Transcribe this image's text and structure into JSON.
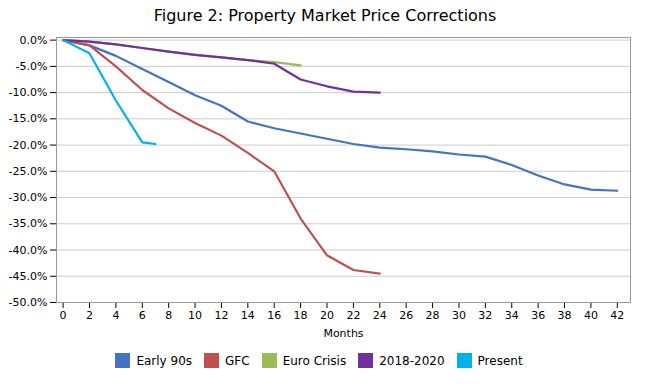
{
  "chart_data": {
    "type": "line",
    "title": "Figure 2: Property Market Price Corrections",
    "xlabel": "Months",
    "series": [
      {
        "name": "Early 90s",
        "color": "#4472C4",
        "x": [
          0,
          2,
          4,
          6,
          8,
          10,
          12,
          14,
          16,
          18,
          20,
          22,
          24,
          26,
          28,
          30,
          32,
          34,
          36,
          38,
          40,
          42
        ],
        "values": [
          0.0,
          -0.01,
          -0.03,
          -0.055,
          -0.08,
          -0.105,
          -0.125,
          -0.155,
          -0.168,
          -0.178,
          -0.188,
          -0.198,
          -0.205,
          -0.208,
          -0.212,
          -0.218,
          -0.222,
          -0.238,
          -0.258,
          -0.275,
          -0.285,
          -0.287
        ]
      },
      {
        "name": "GFC",
        "color": "#C0504D",
        "x": [
          0,
          2,
          4,
          6,
          8,
          10,
          12,
          14,
          16,
          18,
          20,
          22,
          24
        ],
        "values": [
          0.0,
          -0.01,
          -0.05,
          -0.095,
          -0.13,
          -0.158,
          -0.182,
          -0.215,
          -0.25,
          -0.34,
          -0.41,
          -0.438,
          -0.445
        ]
      },
      {
        "name": "Euro Crisis",
        "color": "#9BBB59",
        "x": [
          0,
          2,
          4,
          6,
          8,
          10,
          12,
          14,
          16,
          18
        ],
        "values": [
          0.0,
          -0.003,
          -0.008,
          -0.015,
          -0.022,
          -0.028,
          -0.033,
          -0.038,
          -0.042,
          -0.048
        ]
      },
      {
        "name": "2018-2020",
        "color": "#7030A0",
        "x": [
          0,
          2,
          4,
          6,
          8,
          10,
          12,
          14,
          16,
          18,
          20,
          22,
          24
        ],
        "values": [
          0.0,
          -0.003,
          -0.008,
          -0.015,
          -0.022,
          -0.028,
          -0.033,
          -0.038,
          -0.045,
          -0.075,
          -0.088,
          -0.098,
          -0.1
        ]
      },
      {
        "name": "Present",
        "color": "#00B0F0",
        "x": [
          0,
          2,
          4,
          6,
          7
        ],
        "values": [
          0.0,
          -0.025,
          -0.115,
          -0.195,
          -0.198
        ]
      }
    ],
    "xlim": [
      -0.5,
      43
    ],
    "ylim": [
      -0.5,
      0.005
    ],
    "xticks": [
      0,
      2,
      4,
      6,
      8,
      10,
      12,
      14,
      16,
      18,
      20,
      22,
      24,
      26,
      28,
      30,
      32,
      34,
      36,
      38,
      40,
      42
    ],
    "yticks": [
      {
        "value": 0.0,
        "label": "0.0%"
      },
      {
        "value": -0.05,
        "label": "-5.0%"
      },
      {
        "value": -0.1,
        "label": "-10.0%"
      },
      {
        "value": -0.15,
        "label": "-15.0%"
      },
      {
        "value": -0.2,
        "label": "-20.0%"
      },
      {
        "value": -0.25,
        "label": "-25.0%"
      },
      {
        "value": -0.3,
        "label": "-30.0%"
      },
      {
        "value": -0.35,
        "label": "-35.0%"
      },
      {
        "value": -0.4,
        "label": "-40.0%"
      },
      {
        "value": -0.45,
        "label": "-45.0%"
      },
      {
        "value": -0.5,
        "label": "-50.0%"
      }
    ],
    "grid": true,
    "legend": "bottom"
  }
}
